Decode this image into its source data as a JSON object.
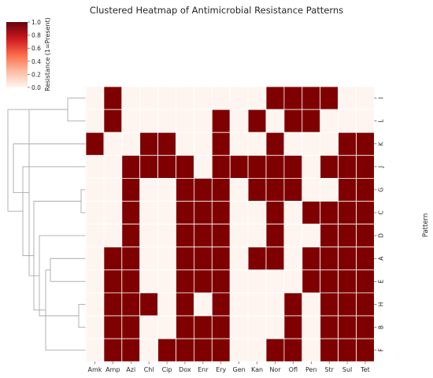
{
  "chart_data": {
    "type": "heatmap",
    "title": "Clustered Heatmap of Antimicrobial Resistance Patterns",
    "ylabel": "Pattern",
    "columns": [
      "Amk",
      "Amp",
      "Azi",
      "Chl",
      "Cip",
      "Dox",
      "Enr",
      "Ery",
      "Gen",
      "Kan",
      "Nor",
      "Ofl",
      "Pen",
      "Str",
      "Sul",
      "Tet"
    ],
    "rows": [
      "I",
      "L",
      "K",
      "J",
      "G",
      "C",
      "D",
      "A",
      "E",
      "H",
      "B",
      "F"
    ],
    "values": [
      [
        0,
        1,
        0,
        0,
        0,
        0,
        0,
        0,
        0,
        0,
        1,
        1,
        1,
        1,
        0,
        0
      ],
      [
        0,
        1,
        0,
        0,
        0,
        0,
        0,
        1,
        0,
        1,
        0,
        1,
        1,
        0,
        0,
        0
      ],
      [
        1,
        0,
        0,
        1,
        1,
        0,
        0,
        1,
        0,
        0,
        1,
        0,
        0,
        0,
        1,
        1
      ],
      [
        0,
        0,
        1,
        1,
        1,
        1,
        0,
        1,
        1,
        1,
        1,
        1,
        0,
        1,
        1,
        1
      ],
      [
        0,
        0,
        1,
        0,
        0,
        1,
        1,
        1,
        0,
        1,
        1,
        1,
        0,
        0,
        1,
        1
      ],
      [
        0,
        0,
        1,
        0,
        0,
        1,
        1,
        1,
        0,
        0,
        1,
        0,
        1,
        1,
        1,
        1
      ],
      [
        0,
        0,
        1,
        0,
        0,
        1,
        1,
        1,
        0,
        0,
        1,
        0,
        0,
        1,
        1,
        1
      ],
      [
        0,
        1,
        1,
        0,
        0,
        1,
        1,
        1,
        0,
        1,
        1,
        0,
        1,
        1,
        1,
        1
      ],
      [
        0,
        1,
        1,
        0,
        0,
        1,
        1,
        1,
        0,
        0,
        0,
        0,
        1,
        1,
        1,
        1
      ],
      [
        0,
        1,
        1,
        1,
        0,
        1,
        0,
        1,
        0,
        0,
        0,
        1,
        0,
        1,
        1,
        1
      ],
      [
        0,
        1,
        1,
        0,
        0,
        1,
        1,
        1,
        0,
        0,
        0,
        1,
        0,
        1,
        1,
        1
      ],
      [
        0,
        1,
        1,
        0,
        1,
        1,
        1,
        1,
        0,
        0,
        1,
        1,
        0,
        1,
        1,
        1
      ]
    ],
    "colorbar": {
      "label": "Resistance (1=Present)",
      "ticks": [
        "0.0",
        "0.2",
        "0.4",
        "0.6",
        "0.8",
        "1.0"
      ],
      "range": [
        0,
        1
      ]
    },
    "colors": {
      "low": "#fff5f0",
      "high": "#7f0000",
      "dendrogram": "#a9a9a9"
    },
    "dendrogram_merges": [
      [
        0,
        1
      ],
      [
        4,
        5
      ],
      [
        7,
        8
      ],
      [
        9,
        10
      ],
      [
        11,
        14
      ],
      [
        6,
        15
      ],
      [
        13,
        16
      ],
      [
        12,
        17
      ],
      [
        3,
        18
      ],
      [
        2,
        19
      ],
      [
        12,
        20
      ]
    ]
  }
}
